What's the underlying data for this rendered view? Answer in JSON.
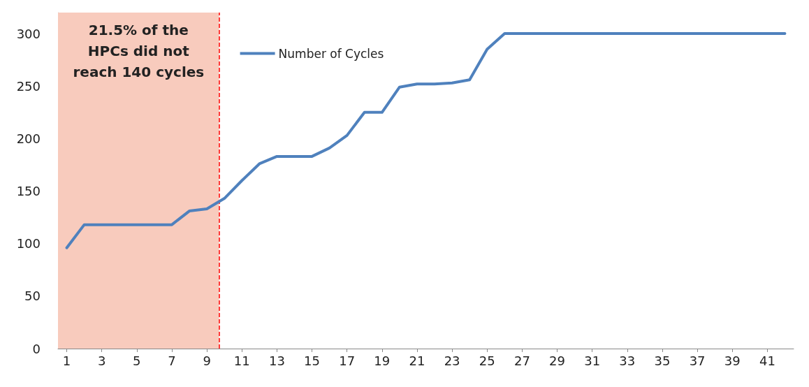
{
  "chart_data": {
    "type": "line",
    "x": [
      1,
      2,
      3,
      4,
      5,
      6,
      7,
      8,
      9,
      10,
      11,
      12,
      13,
      14,
      15,
      16,
      17,
      18,
      19,
      20,
      21,
      22,
      23,
      24,
      25,
      26,
      27,
      28,
      29,
      30,
      31,
      32,
      33,
      34,
      35,
      36,
      37,
      38,
      39,
      40,
      41,
      42
    ],
    "series": [
      {
        "name": "Number of Cycles",
        "color": "#4f81bd",
        "values": [
          96,
          118,
          118,
          118,
          118,
          118,
          118,
          131,
          133,
          143,
          160,
          176,
          183,
          183,
          183,
          191,
          203,
          225,
          225,
          249,
          252,
          252,
          253,
          256,
          285,
          300,
          300,
          300,
          300,
          300,
          300,
          300,
          300,
          300,
          300,
          300,
          300,
          300,
          300,
          300,
          300,
          300
        ]
      }
    ],
    "xlim": [
      0.5,
      42.5
    ],
    "xticks": [
      1,
      3,
      5,
      7,
      9,
      11,
      13,
      15,
      17,
      19,
      21,
      23,
      25,
      27,
      29,
      31,
      33,
      35,
      37,
      39,
      41
    ],
    "ylim": [
      0,
      320
    ],
    "yticks": [
      0,
      50,
      100,
      150,
      200,
      250,
      300
    ],
    "bands": [
      {
        "axis": "x",
        "from": 0.5,
        "to": 9.7,
        "label": "21.5% of the HPCs did not reach 140 cycles",
        "color": "#f8cbbd"
      }
    ],
    "ref_lines": [
      {
        "axis": "x",
        "value": 9.7,
        "color": "#ff0000",
        "line_style": "dashed"
      }
    ],
    "legend": "top left",
    "grid": false,
    "marker": "none",
    "line_style": "solid"
  }
}
